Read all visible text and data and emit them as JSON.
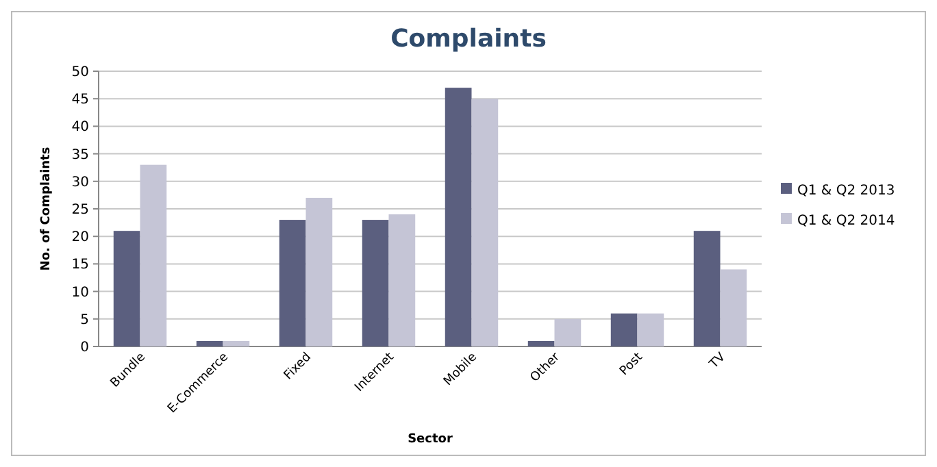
{
  "chart_data": {
    "type": "bar",
    "title": "Complaints",
    "xlabel": "Sector",
    "ylabel": "No. of Complaints",
    "categories": [
      "Bundle",
      "E-Commerce",
      "Fixed",
      "Internet",
      "Mobile",
      "Other",
      "Post",
      "TV"
    ],
    "series": [
      {
        "name": "Q1 & Q2 2013",
        "color": "#5b5f7f",
        "values": [
          21,
          1,
          23,
          23,
          47,
          1,
          6,
          21
        ]
      },
      {
        "name": "Q1 & Q2 2014",
        "color": "#c5c5d6",
        "values": [
          33,
          1,
          27,
          24,
          45,
          5,
          6,
          14
        ]
      }
    ],
    "ylim": [
      0,
      50
    ],
    "yticks": [
      0,
      5,
      10,
      15,
      20,
      25,
      30,
      35,
      40,
      45,
      50
    ],
    "grid": "y",
    "legend": "right"
  }
}
